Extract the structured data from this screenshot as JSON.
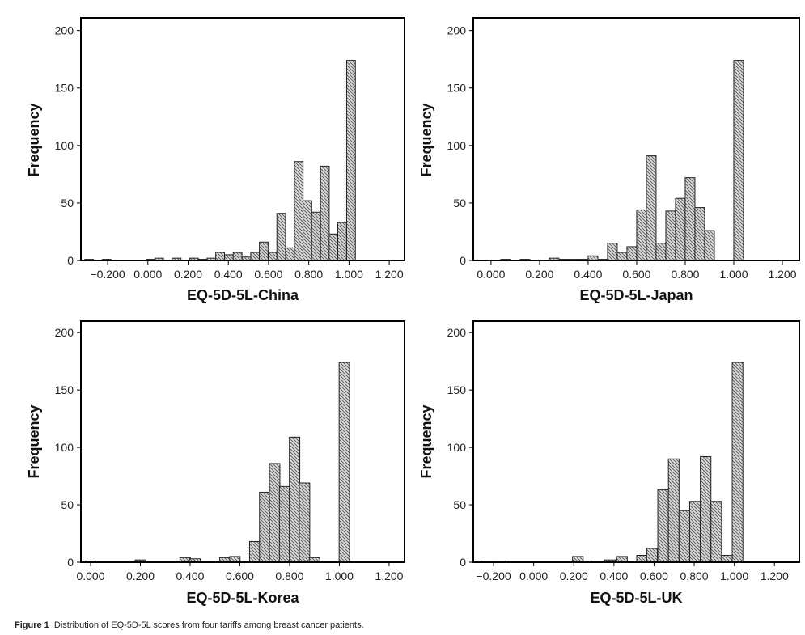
{
  "caption": {
    "label": "Figure 1",
    "text": "Distribution of EQ-5D-5L scores from four tariffs among breast cancer patients."
  },
  "colors": {
    "bar_fill": "#dcdcdc",
    "hatch": "#555555",
    "axis": "#000000"
  },
  "chart_data": [
    {
      "type": "bar",
      "title": "",
      "xlabel": "EQ-5D-5L-China",
      "ylabel": "Frequency",
      "xlim": [
        -0.333,
        1.276
      ],
      "ylim": [
        0,
        211
      ],
      "grid": false,
      "xticks": [
        "-0.200",
        "0.000",
        "0.200",
        "0.400",
        "0.600",
        "0.800",
        "1.000",
        "1.200"
      ],
      "xtick_values": [
        -0.2,
        0,
        0.2,
        0.4,
        0.6,
        0.8,
        1.0,
        1.2
      ],
      "yticks": [
        0,
        50,
        100,
        150,
        200
      ],
      "bin_width": 0.0434,
      "x": [
        -0.292,
        -0.205,
        0.013,
        0.056,
        0.143,
        0.229,
        0.273,
        0.316,
        0.359,
        0.403,
        0.446,
        0.49,
        0.533,
        0.576,
        0.62,
        0.663,
        0.706,
        0.75,
        0.793,
        0.836,
        0.88,
        0.923,
        0.966,
        1.01
      ],
      "values": [
        1,
        1,
        1,
        2,
        2,
        2,
        1,
        2,
        7,
        5,
        7,
        3,
        7,
        16,
        7,
        41,
        11,
        86,
        52,
        42,
        82,
        23,
        33,
        174
      ]
    },
    {
      "type": "bar",
      "title": "",
      "xlabel": "EQ-5D-5L-Japan",
      "ylabel": "Frequency",
      "xlim": [
        -0.073,
        1.27
      ],
      "ylim": [
        0,
        211
      ],
      "grid": false,
      "xticks": [
        "0.000",
        "0.200",
        "0.400",
        "0.600",
        "0.800",
        "1.000",
        "1.200"
      ],
      "xtick_values": [
        0,
        0.2,
        0.4,
        0.6,
        0.8,
        1.0,
        1.2
      ],
      "yticks": [
        0,
        50,
        100,
        150,
        200
      ],
      "bin_width": 0.04,
      "x": [
        0.06,
        0.14,
        0.26,
        0.3,
        0.34,
        0.38,
        0.42,
        0.46,
        0.5,
        0.54,
        0.58,
        0.62,
        0.66,
        0.7,
        0.74,
        0.78,
        0.82,
        0.86,
        0.9,
        1.02
      ],
      "values": [
        1,
        1,
        2,
        1,
        1,
        1,
        4,
        1,
        15,
        7,
        12,
        44,
        91,
        15,
        43,
        54,
        72,
        46,
        26,
        174
      ]
    },
    {
      "type": "bar",
      "title": "",
      "xlabel": "EQ-5D-5L-Korea",
      "ylabel": "Frequency",
      "xlim": [
        -0.039,
        1.262
      ],
      "ylim": [
        0,
        210
      ],
      "grid": false,
      "xticks": [
        "0.000",
        "0.200",
        "0.400",
        "0.600",
        "0.800",
        "1.000",
        "1.200"
      ],
      "xtick_values": [
        0,
        0.2,
        0.4,
        0.6,
        0.8,
        1.0,
        1.2
      ],
      "yticks": [
        0,
        50,
        100,
        150,
        200
      ],
      "bin_width": 0.042,
      "x": [
        0.0,
        0.2,
        0.38,
        0.42,
        0.46,
        0.5,
        0.54,
        0.58,
        0.66,
        0.7,
        0.74,
        0.78,
        0.82,
        0.86,
        0.9,
        1.02
      ],
      "values": [
        1,
        2,
        4,
        3,
        1,
        1,
        4,
        5,
        18,
        61,
        86,
        66,
        109,
        69,
        4,
        174
      ]
    },
    {
      "type": "bar",
      "title": "",
      "xlabel": "EQ-5D-5L-UK",
      "ylabel": "Frequency",
      "xlim": [
        -0.301,
        1.324
      ],
      "ylim": [
        0,
        210
      ],
      "grid": false,
      "xticks": [
        "-0.200",
        "0.000",
        "0.200",
        "0.400",
        "0.600",
        "0.800",
        "1.000",
        "1.200"
      ],
      "xtick_values": [
        -0.2,
        0,
        0.2,
        0.4,
        0.6,
        0.8,
        1.0,
        1.2
      ],
      "yticks": [
        0,
        50,
        100,
        150,
        200
      ],
      "bin_width": 0.053,
      "x": [
        -0.22,
        -0.17,
        0.22,
        0.33,
        0.38,
        0.44,
        0.54,
        0.59,
        0.645,
        0.698,
        0.751,
        0.804,
        0.857,
        0.91,
        0.963,
        1.016
      ],
      "values": [
        1,
        1,
        5,
        1,
        2,
        5,
        6,
        12,
        63,
        90,
        45,
        53,
        92,
        53,
        6,
        174
      ]
    }
  ]
}
